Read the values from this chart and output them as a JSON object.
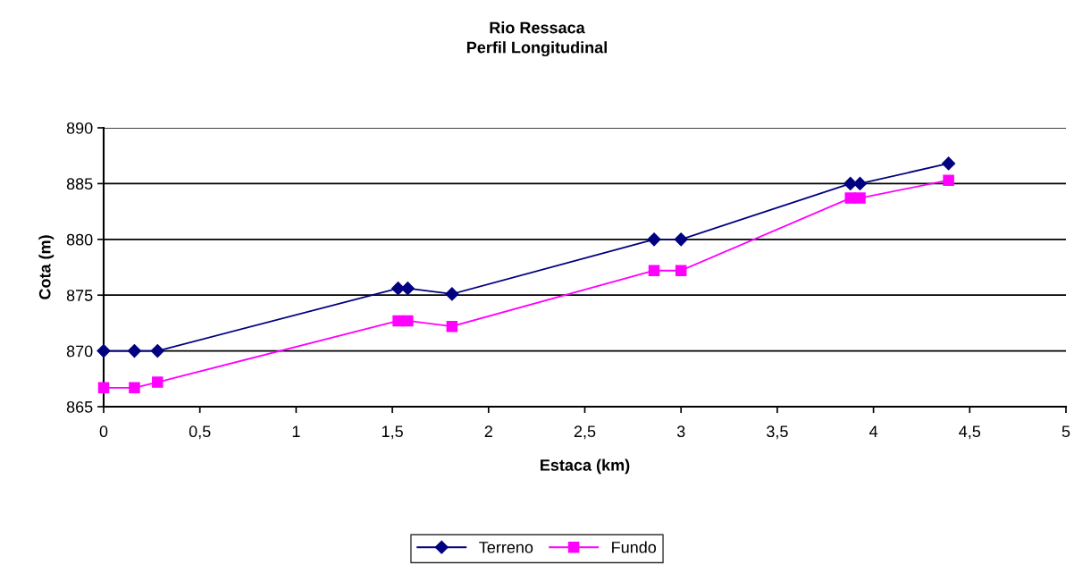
{
  "chart_data": {
    "type": "line",
    "title": "Rio Ressaca\nPerfil Longitudinal",
    "xlabel": "Estaca (km)",
    "ylabel": "Cota (m)",
    "x": [
      0,
      0.16,
      0.28,
      1.53,
      1.58,
      1.81,
      2.86,
      3.0,
      3.88,
      3.93,
      4.39
    ],
    "series": [
      {
        "name": "Terreno",
        "color": "#000080",
        "marker": "diamond",
        "values": [
          870,
          870,
          870,
          875.6,
          875.6,
          875.1,
          880,
          880,
          885,
          885,
          886.8
        ]
      },
      {
        "name": "Fundo",
        "color": "#ff00ff",
        "marker": "square",
        "values": [
          866.7,
          866.7,
          867.2,
          872.7,
          872.7,
          872.2,
          877.2,
          877.2,
          883.7,
          883.7,
          885.3
        ]
      }
    ],
    "xlim": [
      0,
      5
    ],
    "xticks": [
      {
        "value": 0,
        "label": "0"
      },
      {
        "value": 0.5,
        "label": "0,5"
      },
      {
        "value": 1,
        "label": "1"
      },
      {
        "value": 1.5,
        "label": "1,5"
      },
      {
        "value": 2,
        "label": "2"
      },
      {
        "value": 2.5,
        "label": "2,5"
      },
      {
        "value": 3,
        "label": "3"
      },
      {
        "value": 3.5,
        "label": "3,5"
      },
      {
        "value": 4,
        "label": "4"
      },
      {
        "value": 4.5,
        "label": "4,5"
      },
      {
        "value": 5,
        "label": "5"
      }
    ],
    "ylim": [
      865,
      890
    ],
    "yticks": [
      865,
      870,
      875,
      880,
      885,
      890
    ],
    "grid": "y",
    "legend": "bottom"
  }
}
